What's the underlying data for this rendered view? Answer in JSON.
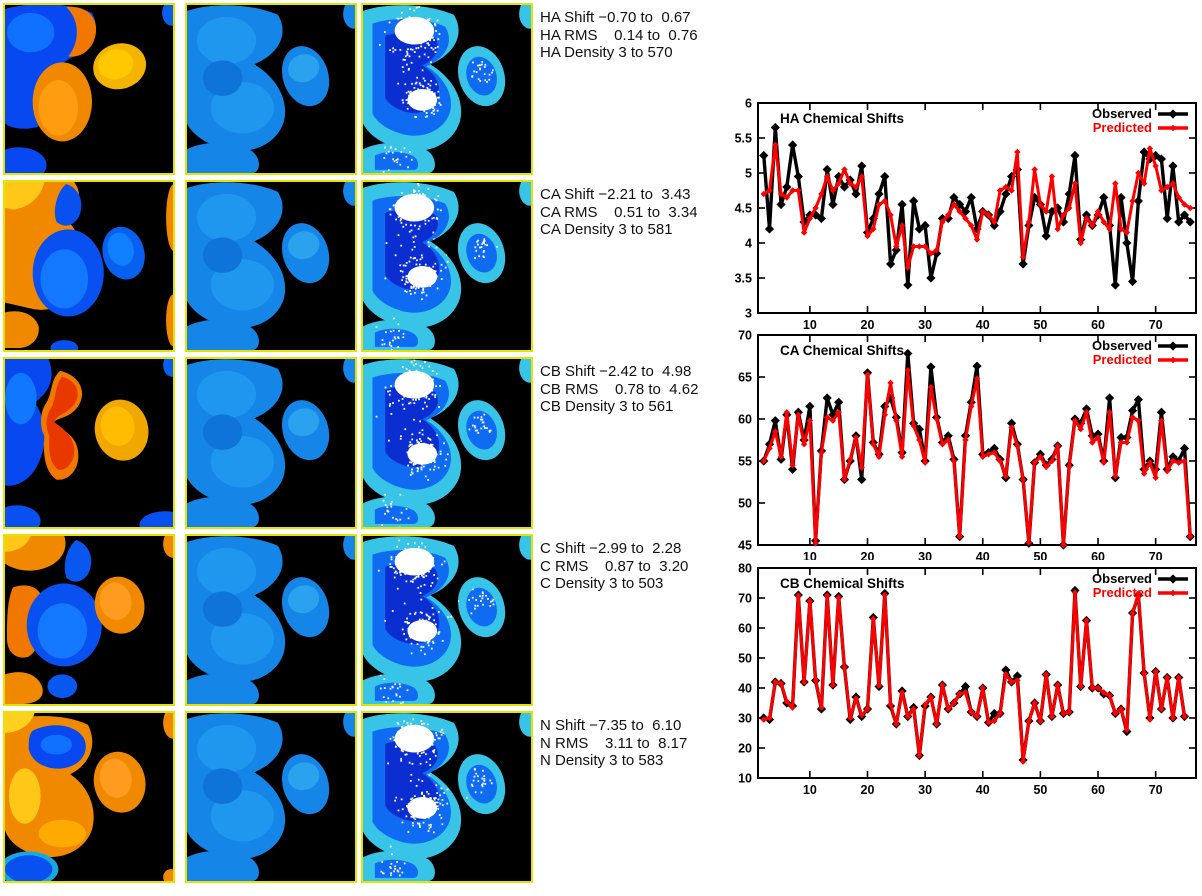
{
  "app": {
    "title": "Chemical shift prediction report"
  },
  "colors": {
    "panel_border": "#e4e400",
    "observed": "#000000",
    "predicted": "#ff0000",
    "deep_blue": "#0848f0",
    "mid_blue": "#1585e8",
    "cyan": "#38c4e6",
    "orange": "#f08800",
    "yellow": "#ffc818",
    "red_orange": "#e83800",
    "density_core": "#0a2ed0",
    "white": "#ffffff",
    "black": "#000000"
  },
  "panels": {
    "columns": [
      "shift-map",
      "rms-map",
      "density-map"
    ],
    "rows": [
      {
        "id": "HA",
        "lines": [
          "HA Shift −0.70 to  0.67",
          "HA RMS    0.14 to  0.76",
          "HA Density 3 to 570"
        ]
      },
      {
        "id": "CA",
        "lines": [
          "CA Shift −2.21 to  3.43",
          "CA RMS    0.51 to  3.34",
          "CA Density 3 to 581"
        ]
      },
      {
        "id": "CB",
        "lines": [
          "CB Shift −2.42 to  4.98",
          "CB RMS    0.78 to  4.62",
          "CB Density 3 to 561"
        ]
      },
      {
        "id": "C",
        "lines": [
          "C Shift −2.99 to  2.28",
          "C RMS    0.87 to  3.20",
          "C Density 3 to 503"
        ]
      },
      {
        "id": "N",
        "lines": [
          "N Shift −7.35 to  6.10",
          "N RMS    3.11 to  8.17",
          "N Density 3 to 583"
        ]
      }
    ]
  },
  "chart_data": [
    {
      "type": "line",
      "title": "HA Chemical Shifts",
      "legend": [
        "Observed",
        "Predicted"
      ],
      "legend_position": "top-right",
      "xlim": [
        1,
        77
      ],
      "ylim": [
        3,
        6
      ],
      "xticks": [
        10,
        20,
        30,
        40,
        50,
        60,
        70
      ],
      "yticks": [
        3,
        3.5,
        4,
        4.5,
        5,
        5.5,
        6
      ],
      "grid": false,
      "x_start": 2,
      "series": [
        {
          "name": "Observed",
          "color": "#000000",
          "values": [
            5.25,
            4.2,
            5.65,
            4.55,
            4.8,
            5.4,
            4.95,
            4.3,
            4.4,
            4.4,
            4.35,
            5.05,
            4.55,
            4.95,
            4.8,
            4.9,
            4.7,
            5.1,
            4.15,
            4.35,
            4.7,
            4.95,
            3.7,
            3.9,
            4.55,
            3.4,
            4.6,
            4.2,
            4.25,
            3.5,
            3.85,
            4.35,
            4.35,
            4.65,
            4.55,
            4.45,
            4.65,
            4.2,
            4.45,
            4.4,
            4.25,
            4.45,
            4.7,
            4.95,
            5.05,
            3.7,
            4.25,
            4.65,
            4.55,
            4.1,
            4.45,
            4.5,
            4.3,
            4.7,
            5.25,
            4.05,
            4.4,
            4.25,
            4.4,
            4.65,
            4.25,
            3.4,
            4.65,
            4.0,
            3.45,
            4.6,
            5.3,
            5.2,
            5.25,
            5.2,
            4.35,
            5.1,
            4.3,
            4.4,
            4.3
          ]
        },
        {
          "name": "Predicted",
          "color": "#ff0000",
          "values": [
            4.7,
            4.75,
            5.4,
            4.7,
            4.65,
            4.75,
            4.75,
            4.15,
            4.35,
            4.5,
            4.7,
            4.95,
            4.75,
            4.85,
            5.05,
            4.85,
            4.8,
            4.95,
            4.1,
            4.2,
            4.55,
            4.6,
            4.4,
            3.95,
            4.25,
            3.65,
            3.95,
            3.95,
            3.95,
            3.85,
            3.9,
            4.3,
            4.4,
            4.55,
            4.45,
            4.35,
            4.25,
            4.05,
            4.45,
            4.4,
            4.3,
            4.75,
            4.8,
            4.75,
            5.3,
            3.8,
            4.3,
            5.05,
            4.55,
            4.45,
            4.95,
            4.2,
            4.4,
            4.5,
            4.85,
            4.0,
            4.35,
            4.25,
            4.45,
            4.3,
            4.2,
            4.85,
            4.2,
            4.15,
            4.6,
            5.0,
            4.85,
            5.35,
            5.1,
            4.75,
            4.8,
            4.85,
            4.65,
            4.55,
            4.5
          ]
        }
      ]
    },
    {
      "type": "line",
      "title": "CA Chemical Shifts",
      "legend": [
        "Observed",
        "Predicted"
      ],
      "legend_position": "top-right",
      "xlim": [
        1,
        77
      ],
      "ylim": [
        45,
        70
      ],
      "xticks": [
        10,
        20,
        30,
        40,
        50,
        60,
        70
      ],
      "yticks": [
        45,
        50,
        55,
        60,
        65,
        70
      ],
      "grid": false,
      "x_start": 2,
      "series": [
        {
          "name": "Observed",
          "color": "#000000",
          "values": [
            55,
            57,
            59.8,
            55.2,
            60.5,
            54,
            60.8,
            57.5,
            61.5,
            45.5,
            56.2,
            62.5,
            60.5,
            62,
            52.8,
            55,
            58,
            52.8,
            65.5,
            57.2,
            55.8,
            61.5,
            62.5,
            60.2,
            56,
            67.8,
            59.5,
            58.8,
            55,
            66.2,
            60.2,
            57.2,
            58,
            55.2,
            46,
            58,
            62,
            66.3,
            55.8,
            56,
            56.5,
            55.2,
            53,
            59.5,
            57,
            52.8,
            45.2,
            54.8,
            55.8,
            54.5,
            55.2,
            56.8,
            45,
            54.5,
            60,
            59.5,
            61.2,
            58,
            58.2,
            55,
            62.5,
            53,
            57.8,
            57.8,
            61,
            62.3,
            54,
            55,
            54,
            60.8,
            54,
            55.5,
            55,
            56.5,
            46
          ]
        },
        {
          "name": "Predicted",
          "color": "#ff0000",
          "values": [
            55,
            56.5,
            58.5,
            55.5,
            60.8,
            54.5,
            60.5,
            57,
            59.8,
            45.2,
            56,
            60.2,
            59.8,
            60.8,
            52.8,
            55.2,
            57.8,
            54.2,
            65.3,
            57,
            55.5,
            60.5,
            64.3,
            59.8,
            55.5,
            65.8,
            59.2,
            57.5,
            54.8,
            63.8,
            60,
            57,
            57.5,
            55,
            46,
            57.5,
            61.5,
            64.8,
            55.5,
            55.8,
            56,
            55,
            53.2,
            59,
            56.8,
            52.8,
            45.3,
            54.8,
            55.5,
            54.3,
            55,
            56.8,
            45,
            54.3,
            59.8,
            58.8,
            60.8,
            57.2,
            57.8,
            54.8,
            60.8,
            53.2,
            57.2,
            57.2,
            60.2,
            59.8,
            53.5,
            54.8,
            53,
            59.8,
            53.8,
            55,
            54.8,
            55,
            46
          ]
        }
      ]
    },
    {
      "type": "line",
      "title": "CB Chemical Shifts",
      "legend": [
        "Observed",
        "Predicted"
      ],
      "legend_position": "top-right",
      "xlim": [
        1,
        77
      ],
      "ylim": [
        10,
        80
      ],
      "xticks": [
        10,
        20,
        30,
        40,
        50,
        60,
        70
      ],
      "yticks": [
        10,
        20,
        30,
        40,
        50,
        60,
        70,
        80
      ],
      "grid": false,
      "x_start": 2,
      "series": [
        {
          "name": "Observed",
          "color": "#000000",
          "values": [
            30,
            29.5,
            42,
            41.5,
            35,
            34,
            71,
            42,
            69,
            42.5,
            33,
            71,
            41,
            70.5,
            47,
            29.5,
            37,
            30.5,
            33,
            63.5,
            40.5,
            71.5,
            34,
            28,
            39,
            30.5,
            33.5,
            17.5,
            34,
            37,
            28,
            41,
            33,
            35,
            38,
            40.5,
            32,
            30.5,
            40,
            28.5,
            31.5,
            31.5,
            46,
            42,
            44,
            16,
            29,
            35,
            29,
            44.5,
            30.5,
            41,
            31.5,
            32,
            72.5,
            40.5,
            62.5,
            40,
            40,
            38,
            37.5,
            31.5,
            33,
            25.5,
            65,
            71,
            45,
            30,
            45.5,
            33,
            43.5,
            30,
            43.5,
            30.5
          ]
        },
        {
          "name": "Predicted",
          "color": "#ff0000",
          "values": [
            29.5,
            30,
            42,
            41.5,
            35.5,
            33.5,
            70.8,
            42,
            69,
            42.5,
            33.5,
            70.8,
            41,
            70.2,
            47,
            30,
            36.5,
            31,
            33,
            63,
            40.8,
            71,
            34.5,
            28,
            38.5,
            30.5,
            33,
            17.5,
            34.5,
            37,
            28,
            41,
            33,
            35,
            38,
            38.5,
            32,
            30.5,
            40,
            28.5,
            29,
            31.5,
            44.5,
            42,
            42.5,
            15.5,
            29,
            35,
            29,
            44.5,
            30.5,
            41,
            31.5,
            32,
            71.8,
            40.5,
            62.5,
            40,
            40,
            38.5,
            37.5,
            31.5,
            33,
            26,
            65,
            71.5,
            45,
            29.5,
            45.5,
            33,
            43.5,
            30,
            43.5,
            30.5
          ]
        }
      ]
    }
  ]
}
